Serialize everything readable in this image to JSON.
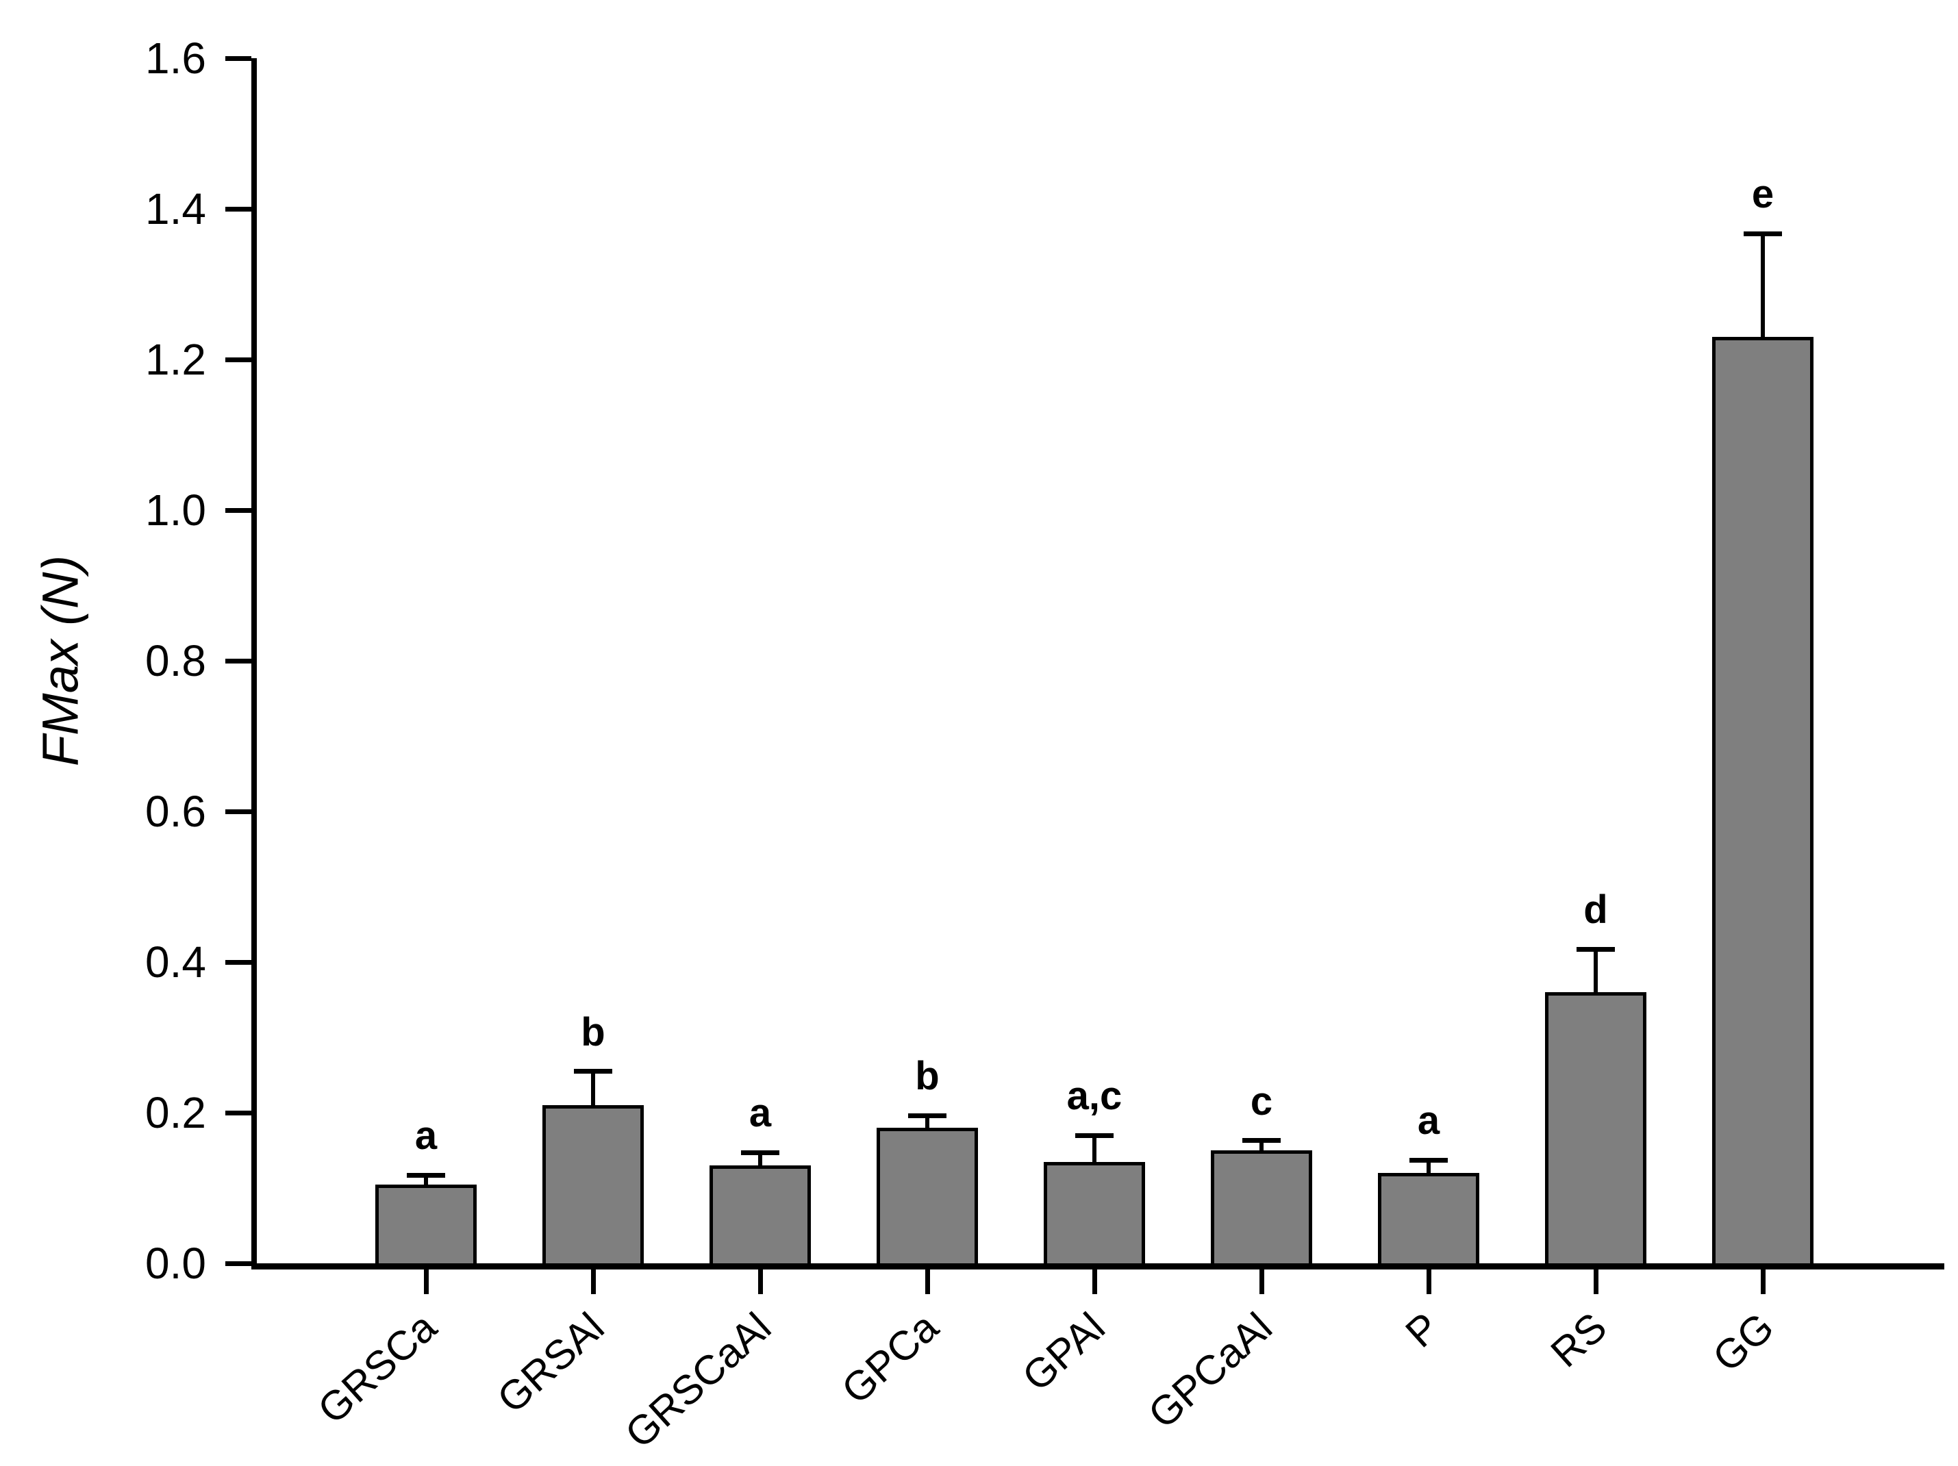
{
  "chart_data": {
    "type": "bar",
    "title": "",
    "xlabel": "",
    "ylabel": "FMax (N)",
    "ylim": [
      0,
      1.6
    ],
    "ytick_values": [
      0.0,
      0.2,
      0.4,
      0.6,
      0.8,
      1.0,
      1.2,
      1.4,
      1.6
    ],
    "ytick_labels": [
      "0.0",
      "0.2",
      "0.4",
      "0.6",
      "0.8",
      "1.0",
      "1.2",
      "1.4",
      "1.6"
    ],
    "categories": [
      "GRSCa",
      "GRSAl",
      "GRSCaAl",
      "GPCa",
      "GPAl",
      "GPCaAl",
      "P",
      "RS",
      "GG"
    ],
    "values": [
      0.105,
      0.21,
      0.13,
      0.18,
      0.135,
      0.15,
      0.12,
      0.36,
      1.23
    ],
    "errors_plus": [
      0.012,
      0.045,
      0.017,
      0.016,
      0.035,
      0.013,
      0.017,
      0.057,
      0.137
    ],
    "sig_letters": [
      "a",
      "b",
      "a",
      "b",
      "a,c",
      "c",
      "a",
      "d",
      "e"
    ],
    "grid": false,
    "legend": false,
    "bar_fill_color": "#7f7f7f",
    "bar_border_color": "#000000",
    "axis_color": "#000000",
    "background_color": "#ffffff"
  }
}
